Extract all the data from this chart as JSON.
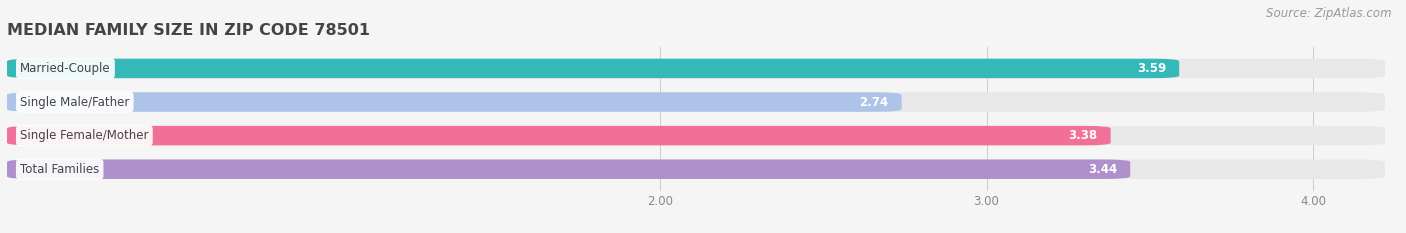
{
  "title": "MEDIAN FAMILY SIZE IN ZIP CODE 78501",
  "source": "Source: ZipAtlas.com",
  "categories": [
    "Married-Couple",
    "Single Male/Father",
    "Single Female/Mother",
    "Total Families"
  ],
  "values": [
    3.59,
    2.74,
    3.38,
    3.44
  ],
  "bar_colors": [
    "#35b8b8",
    "#adc4e8",
    "#f07098",
    "#b090cc"
  ],
  "bar_bg_color": "#e8e8e8",
  "xlim": [
    0,
    4.22
  ],
  "xstart": 0,
  "xticks": [
    2.0,
    3.0,
    4.0
  ],
  "xtick_labels": [
    "2.00",
    "3.00",
    "4.00"
  ],
  "title_fontsize": 11.5,
  "label_fontsize": 8.5,
  "value_fontsize": 8.5,
  "source_fontsize": 8.5,
  "bg_color": "#f5f5f5",
  "bar_gap": 0.25,
  "bar_height": 0.58
}
